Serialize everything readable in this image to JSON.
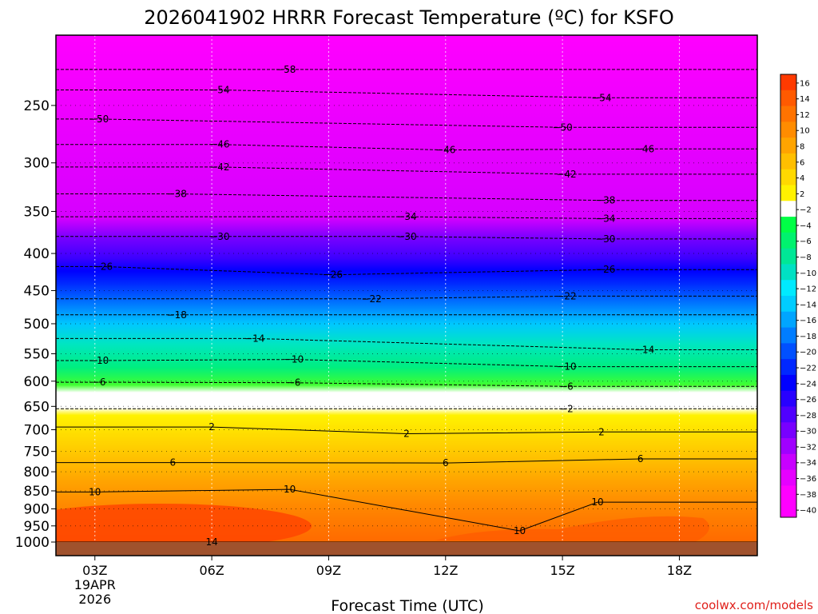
{
  "chart_data": {
    "type": "heatmap",
    "title": "2026041902 HRRR Forecast Temperature (ºC) for KSFO",
    "xlabel": "Forecast Time (UTC)",
    "ylabel": "",
    "x_ticks": [
      {
        "hour": 3,
        "label": "03Z",
        "sub": [
          "19APR",
          "2026"
        ]
      },
      {
        "hour": 6,
        "label": "06Z"
      },
      {
        "hour": 9,
        "label": "09Z"
      },
      {
        "hour": 12,
        "label": "12Z"
      },
      {
        "hour": 15,
        "label": "15Z"
      },
      {
        "hour": 18,
        "label": "18Z"
      }
    ],
    "xlim": [
      2,
      20
    ],
    "y_ticks": [
      250,
      300,
      350,
      400,
      450,
      500,
      550,
      600,
      650,
      700,
      750,
      800,
      850,
      900,
      950,
      1000
    ],
    "ylim_hPa": [
      1000,
      200
    ],
    "y_scale": "log-pressure",
    "grid": true,
    "colorbar": {
      "labels": [
        "16",
        "14",
        "12",
        "10",
        "8",
        "6",
        "4",
        "2",
        "−2",
        "−4",
        "−6",
        "−8",
        "−10",
        "−12",
        "−14",
        "−16",
        "−18",
        "−20",
        "−22",
        "−24",
        "−26",
        "−28",
        "−30",
        "−32",
        "−34",
        "−36",
        "−38",
        "−40"
      ],
      "colors": [
        "#ff3a00",
        "#ff5a00",
        "#ff7300",
        "#ff8c00",
        "#ffa400",
        "#ffbf00",
        "#ffd900",
        "#fff200",
        "#ffffff",
        "#00ff46",
        "#00f26e",
        "#00e796",
        "#00e1c3",
        "#00eaff",
        "#00cdff",
        "#00a5ff",
        "#007dff",
        "#0050ff",
        "#0028ff",
        "#0000ff",
        "#2800ff",
        "#5000ff",
        "#7800ff",
        "#a000ff",
        "#c800ff",
        "#e600ff",
        "#ff00ff",
        "#ff00ff"
      ]
    },
    "contour_labels": [
      {
        "t": "−58",
        "x": 7.9,
        "p": 223
      },
      {
        "t": "−54",
        "x": 6.2,
        "p": 238
      },
      {
        "t": "−54",
        "x": 16.0,
        "p": 244
      },
      {
        "t": "−50",
        "x": 3.1,
        "p": 261
      },
      {
        "t": "−50",
        "x": 15.0,
        "p": 268
      },
      {
        "t": "−46",
        "x": 6.2,
        "p": 283
      },
      {
        "t": "−46",
        "x": 12.0,
        "p": 288
      },
      {
        "t": "−46",
        "x": 17.1,
        "p": 287
      },
      {
        "t": "−42",
        "x": 6.2,
        "p": 304
      },
      {
        "t": "−42",
        "x": 15.1,
        "p": 311
      },
      {
        "t": "−38",
        "x": 5.1,
        "p": 331
      },
      {
        "t": "−38",
        "x": 16.1,
        "p": 338
      },
      {
        "t": "−34",
        "x": 11.0,
        "p": 356
      },
      {
        "t": "−34",
        "x": 16.1,
        "p": 358
      },
      {
        "t": "−30",
        "x": 6.2,
        "p": 379
      },
      {
        "t": "−30",
        "x": 11.0,
        "p": 379
      },
      {
        "t": "−30",
        "x": 16.1,
        "p": 382
      },
      {
        "t": "−26",
        "x": 3.2,
        "p": 417
      },
      {
        "t": "−26",
        "x": 9.1,
        "p": 428
      },
      {
        "t": "−26",
        "x": 16.1,
        "p": 421
      },
      {
        "t": "−22",
        "x": 10.1,
        "p": 462
      },
      {
        "t": "−22",
        "x": 15.1,
        "p": 458
      },
      {
        "t": "−18",
        "x": 5.1,
        "p": 486
      },
      {
        "t": "−14",
        "x": 7.1,
        "p": 524
      },
      {
        "t": "−14",
        "x": 17.1,
        "p": 543
      },
      {
        "t": "−10",
        "x": 3.1,
        "p": 562
      },
      {
        "t": "−10",
        "x": 8.1,
        "p": 560
      },
      {
        "t": "−10",
        "x": 15.1,
        "p": 573
      },
      {
        "t": "−6",
        "x": 3.1,
        "p": 602
      },
      {
        "t": "−6",
        "x": 8.1,
        "p": 603
      },
      {
        "t": "−6",
        "x": 15.1,
        "p": 610
      },
      {
        "t": "−2",
        "x": 15.1,
        "p": 655
      },
      {
        "t": "2",
        "x": 6.0,
        "p": 694
      },
      {
        "t": "2",
        "x": 11.0,
        "p": 709
      },
      {
        "t": "2",
        "x": 16.0,
        "p": 705
      },
      {
        "t": "6",
        "x": 5.0,
        "p": 777
      },
      {
        "t": "6",
        "x": 12.0,
        "p": 778
      },
      {
        "t": "6",
        "x": 17.0,
        "p": 768
      },
      {
        "t": "10",
        "x": 3.0,
        "p": 853
      },
      {
        "t": "10",
        "x": 8.0,
        "p": 846
      },
      {
        "t": "10",
        "x": 15.9,
        "p": 881
      },
      {
        "t": "10",
        "x": 13.9,
        "p": 965
      },
      {
        "t": "14",
        "x": 6.0,
        "p": 1000
      }
    ]
  },
  "credit": "coolwx.com/models"
}
